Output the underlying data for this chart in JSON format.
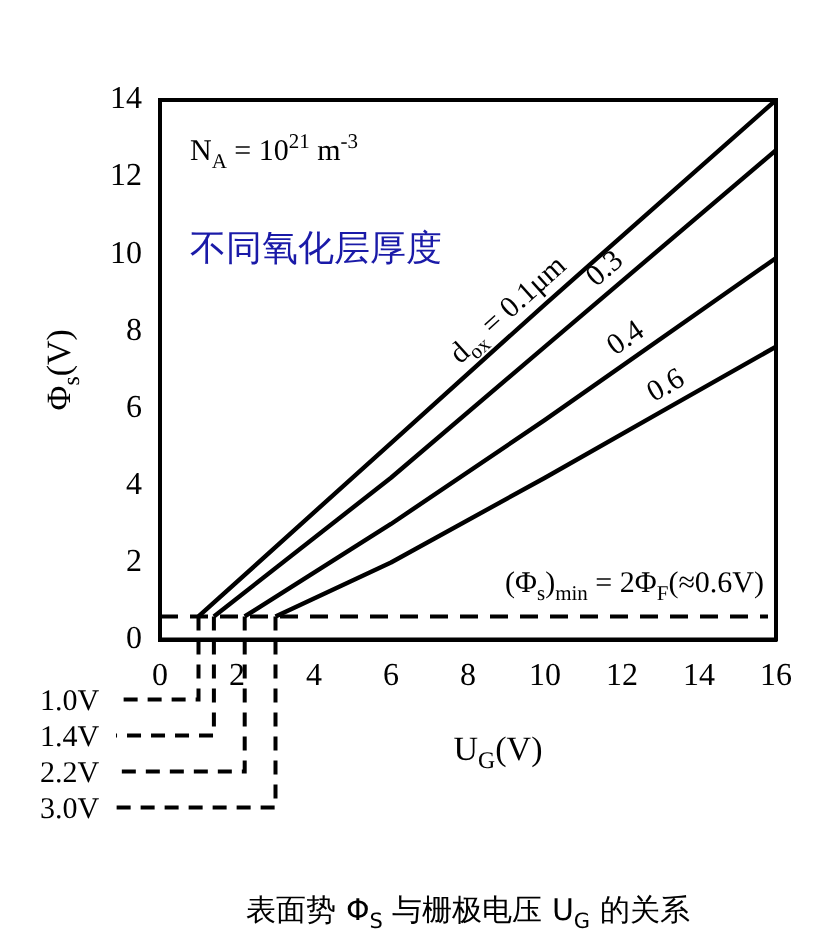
{
  "chart_data": {
    "type": "line",
    "xlabel": "U$_{G}$(V)",
    "ylabel": "Φ$_{s}$(V)",
    "xlim": [
      0,
      16
    ],
    "xticks": [
      0,
      2,
      4,
      6,
      8,
      10,
      12,
      14,
      16
    ],
    "ylim": [
      0,
      14
    ],
    "yticks": [
      0,
      2,
      4,
      6,
      8,
      10,
      12,
      14
    ],
    "grid": false,
    "legend": false,
    "marker": "none",
    "line_style": "solid",
    "series": [
      {
        "name": "d$_{ox}$ = 0.1μm",
        "color": "#000000",
        "x": [
          1.0,
          6,
          10,
          16
        ],
        "values": [
          0.6,
          5.1,
          8.7,
          14.0
        ]
      },
      {
        "name": "0.3",
        "color": "#000000",
        "x": [
          1.4,
          6,
          10,
          16
        ],
        "values": [
          0.6,
          4.2,
          7.6,
          12.7
        ]
      },
      {
        "name": "0.4",
        "color": "#000000",
        "x": [
          2.2,
          6,
          10,
          16
        ],
        "values": [
          0.6,
          3.0,
          5.7,
          9.9
        ]
      },
      {
        "name": "0.6",
        "color": "#000000",
        "x": [
          3.0,
          6,
          10,
          13,
          16
        ],
        "values": [
          0.6,
          2.0,
          4.2,
          5.9,
          7.6
        ]
      }
    ],
    "ref_lines": [
      {
        "axis": "y",
        "value": 0.6,
        "label": "(Φ$_{s}$)$_{min}$ = 2Φ$_{F}$(≈0.6V)",
        "line_style": "dashed",
        "color": "#000000"
      }
    ],
    "annotations": [
      "N$_{A}$ = 10$^{21}$ m$^{-3}$",
      "不同氧化层厚度",
      "表面势 Φ$_{S}$ 与栅极电压 U$_{G}$ 的关系",
      {
        "text": "1.0V",
        "x": 1.0,
        "y": 0.6
      },
      {
        "text": "1.4V",
        "x": 1.4,
        "y": 0.6
      },
      {
        "text": "2.2V",
        "x": 2.2,
        "y": 0.6
      },
      {
        "text": "3.0V",
        "x": 3.0,
        "y": 0.6
      }
    ]
  }
}
